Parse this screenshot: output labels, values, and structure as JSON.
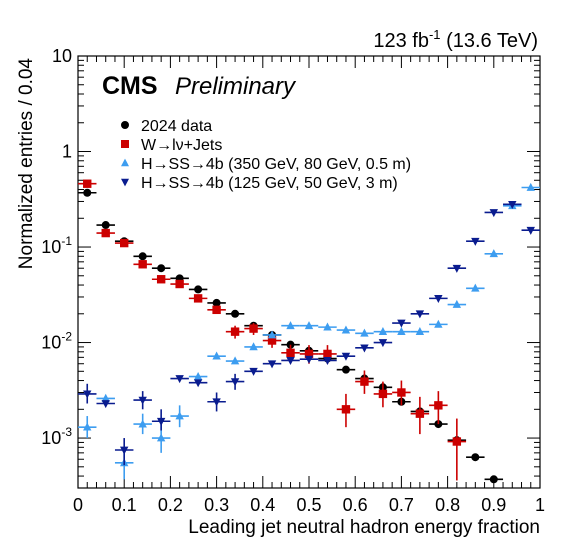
{
  "chart_data": {
    "type": "scatter",
    "header": {
      "lumi_value": "123 fb",
      "lumi_exponent": "-1",
      "lumi_energy": "(13.6 TeV)",
      "experiment": "CMS",
      "status": "Preliminary"
    },
    "xlabel": "Leading jet neutral hadron energy fraction",
    "ylabel": "Normalized entries / 0.04",
    "xlim": [
      0,
      1
    ],
    "ylim": [
      0.0003,
      10
    ],
    "y_scale": "log",
    "x_ticks": [
      "0",
      "0.1",
      "0.2",
      "0.3",
      "0.4",
      "0.5",
      "0.6",
      "0.7",
      "0.8",
      "0.9",
      "1"
    ],
    "y_ticks": [
      {
        "base": "10",
        "exp": "-3",
        "value": 0.001
      },
      {
        "base": "10",
        "exp": "-2",
        "value": 0.01
      },
      {
        "base": "10",
        "exp": "-1",
        "value": 0.1
      },
      {
        "base": "1",
        "exp": "",
        "value": 1
      },
      {
        "base": "10",
        "exp": "",
        "value": 10
      }
    ],
    "bin_width": 0.04,
    "legend_position": "top-left",
    "series": [
      {
        "name": "2024 data",
        "marker": "circle",
        "color": "#000000",
        "points": [
          {
            "x": 0.02,
            "y": 0.37,
            "lo": 0.37,
            "hi": 0.37
          },
          {
            "x": 0.06,
            "y": 0.17,
            "lo": 0.17,
            "hi": 0.17
          },
          {
            "x": 0.1,
            "y": 0.115,
            "lo": 0.115,
            "hi": 0.115
          },
          {
            "x": 0.14,
            "y": 0.08,
            "lo": 0.08,
            "hi": 0.08
          },
          {
            "x": 0.18,
            "y": 0.06,
            "lo": 0.06,
            "hi": 0.06
          },
          {
            "x": 0.22,
            "y": 0.047,
            "lo": 0.047,
            "hi": 0.047
          },
          {
            "x": 0.26,
            "y": 0.036,
            "lo": 0.036,
            "hi": 0.036
          },
          {
            "x": 0.3,
            "y": 0.026,
            "lo": 0.026,
            "hi": 0.026
          },
          {
            "x": 0.34,
            "y": 0.02,
            "lo": 0.02,
            "hi": 0.02
          },
          {
            "x": 0.38,
            "y": 0.015,
            "lo": 0.015,
            "hi": 0.015
          },
          {
            "x": 0.42,
            "y": 0.012,
            "lo": 0.012,
            "hi": 0.012
          },
          {
            "x": 0.46,
            "y": 0.0095,
            "lo": 0.0095,
            "hi": 0.0095
          },
          {
            "x": 0.5,
            "y": 0.0082,
            "lo": 0.0082,
            "hi": 0.0082
          },
          {
            "x": 0.54,
            "y": 0.0068,
            "lo": 0.0068,
            "hi": 0.0068
          },
          {
            "x": 0.58,
            "y": 0.0052,
            "lo": 0.0052,
            "hi": 0.0052
          },
          {
            "x": 0.62,
            "y": 0.0042,
            "lo": 0.0042,
            "hi": 0.0042
          },
          {
            "x": 0.66,
            "y": 0.0034,
            "lo": 0.0034,
            "hi": 0.0034
          },
          {
            "x": 0.7,
            "y": 0.0024,
            "lo": 0.0024,
            "hi": 0.0024
          },
          {
            "x": 0.74,
            "y": 0.0019,
            "lo": 0.0019,
            "hi": 0.0019
          },
          {
            "x": 0.78,
            "y": 0.0014,
            "lo": 0.0014,
            "hi": 0.0014
          },
          {
            "x": 0.82,
            "y": 0.00095,
            "lo": 0.00095,
            "hi": 0.00095
          },
          {
            "x": 0.86,
            "y": 0.00063,
            "lo": 0.00063,
            "hi": 0.00063
          },
          {
            "x": 0.9,
            "y": 0.00037,
            "lo": 0.00037,
            "hi": 0.00037
          }
        ]
      },
      {
        "name": "W→lν+Jets",
        "marker": "square",
        "color": "#cc0000",
        "points": [
          {
            "x": 0.02,
            "y": 0.46,
            "lo": 0.46,
            "hi": 0.46
          },
          {
            "x": 0.06,
            "y": 0.14,
            "lo": 0.14,
            "hi": 0.14
          },
          {
            "x": 0.1,
            "y": 0.11,
            "lo": 0.11,
            "hi": 0.11
          },
          {
            "x": 0.14,
            "y": 0.066,
            "lo": 0.066,
            "hi": 0.066
          },
          {
            "x": 0.18,
            "y": 0.046,
            "lo": 0.046,
            "hi": 0.046
          },
          {
            "x": 0.22,
            "y": 0.041,
            "lo": 0.041,
            "hi": 0.041
          },
          {
            "x": 0.26,
            "y": 0.029,
            "lo": 0.029,
            "hi": 0.029
          },
          {
            "x": 0.3,
            "y": 0.022,
            "lo": 0.022,
            "hi": 0.022
          },
          {
            "x": 0.34,
            "y": 0.013,
            "lo": 0.011,
            "hi": 0.015
          },
          {
            "x": 0.38,
            "y": 0.014,
            "lo": 0.012,
            "hi": 0.016
          },
          {
            "x": 0.42,
            "y": 0.0105,
            "lo": 0.0088,
            "hi": 0.0125
          },
          {
            "x": 0.46,
            "y": 0.0078,
            "lo": 0.0062,
            "hi": 0.0095
          },
          {
            "x": 0.5,
            "y": 0.0076,
            "lo": 0.006,
            "hi": 0.0094
          },
          {
            "x": 0.54,
            "y": 0.0076,
            "lo": 0.006,
            "hi": 0.0094
          },
          {
            "x": 0.58,
            "y": 0.002,
            "lo": 0.0013,
            "hi": 0.0029
          },
          {
            "x": 0.62,
            "y": 0.0039,
            "lo": 0.0029,
            "hi": 0.0051
          },
          {
            "x": 0.66,
            "y": 0.0029,
            "lo": 0.0021,
            "hi": 0.0039
          },
          {
            "x": 0.7,
            "y": 0.003,
            "lo": 0.0022,
            "hi": 0.004
          },
          {
            "x": 0.74,
            "y": 0.0018,
            "lo": 0.0011,
            "hi": 0.0027
          },
          {
            "x": 0.78,
            "y": 0.0022,
            "lo": 0.0014,
            "hi": 0.0031
          },
          {
            "x": 0.82,
            "y": 0.00092,
            "lo": 0.00036,
            "hi": 0.0016
          }
        ]
      },
      {
        "name": "H→SS→4b (350 GeV, 80 GeV, 0.5 m)",
        "marker": "triangle-up",
        "color": "#3d9df0",
        "points": [
          {
            "x": 0.02,
            "y": 0.0013,
            "lo": 0.001,
            "hi": 0.0017
          },
          {
            "x": 0.06,
            "y": 0.0026,
            "lo": 0.0026,
            "hi": 0.0026
          },
          {
            "x": 0.1,
            "y": 0.00055,
            "lo": 0.00037,
            "hi": 0.00075
          },
          {
            "x": 0.14,
            "y": 0.0014,
            "lo": 0.0011,
            "hi": 0.0018
          },
          {
            "x": 0.18,
            "y": 0.001,
            "lo": 0.0007,
            "hi": 0.0014
          },
          {
            "x": 0.22,
            "y": 0.0017,
            "lo": 0.0013,
            "hi": 0.0022
          },
          {
            "x": 0.26,
            "y": 0.0044,
            "lo": 0.0044,
            "hi": 0.0044
          },
          {
            "x": 0.3,
            "y": 0.0072,
            "lo": 0.0072,
            "hi": 0.0072
          },
          {
            "x": 0.34,
            "y": 0.0064,
            "lo": 0.0064,
            "hi": 0.0064
          },
          {
            "x": 0.38,
            "y": 0.009,
            "lo": 0.009,
            "hi": 0.009
          },
          {
            "x": 0.42,
            "y": 0.012,
            "lo": 0.012,
            "hi": 0.012
          },
          {
            "x": 0.46,
            "y": 0.015,
            "lo": 0.015,
            "hi": 0.015
          },
          {
            "x": 0.5,
            "y": 0.015,
            "lo": 0.015,
            "hi": 0.015
          },
          {
            "x": 0.54,
            "y": 0.0145,
            "lo": 0.0145,
            "hi": 0.0145
          },
          {
            "x": 0.58,
            "y": 0.0135,
            "lo": 0.0135,
            "hi": 0.0135
          },
          {
            "x": 0.62,
            "y": 0.0125,
            "lo": 0.0125,
            "hi": 0.0125
          },
          {
            "x": 0.66,
            "y": 0.013,
            "lo": 0.013,
            "hi": 0.013
          },
          {
            "x": 0.7,
            "y": 0.013,
            "lo": 0.013,
            "hi": 0.013
          },
          {
            "x": 0.74,
            "y": 0.013,
            "lo": 0.013,
            "hi": 0.013
          },
          {
            "x": 0.78,
            "y": 0.0155,
            "lo": 0.0155,
            "hi": 0.0155
          },
          {
            "x": 0.82,
            "y": 0.025,
            "lo": 0.025,
            "hi": 0.025
          },
          {
            "x": 0.86,
            "y": 0.037,
            "lo": 0.037,
            "hi": 0.037
          },
          {
            "x": 0.9,
            "y": 0.085,
            "lo": 0.085,
            "hi": 0.085
          },
          {
            "x": 0.94,
            "y": 0.27,
            "lo": 0.27,
            "hi": 0.27
          },
          {
            "x": 0.98,
            "y": 0.42,
            "lo": 0.42,
            "hi": 0.42
          }
        ]
      },
      {
        "name": "H→SS→4b (125 GeV, 50 GeV, 3 m)",
        "marker": "triangle-down",
        "color": "#0a1c8f",
        "points": [
          {
            "x": 0.02,
            "y": 0.0029,
            "lo": 0.0023,
            "hi": 0.0037
          },
          {
            "x": 0.06,
            "y": 0.0023,
            "lo": 0.0023,
            "hi": 0.0023
          },
          {
            "x": 0.1,
            "y": 0.00075,
            "lo": 0.00052,
            "hi": 0.001
          },
          {
            "x": 0.14,
            "y": 0.0025,
            "lo": 0.002,
            "hi": 0.0031
          },
          {
            "x": 0.18,
            "y": 0.0015,
            "lo": 0.0012,
            "hi": 0.002
          },
          {
            "x": 0.22,
            "y": 0.0042,
            "lo": 0.0042,
            "hi": 0.0042
          },
          {
            "x": 0.26,
            "y": 0.0038,
            "lo": 0.0038,
            "hi": 0.0038
          },
          {
            "x": 0.3,
            "y": 0.0024,
            "lo": 0.0019,
            "hi": 0.003
          },
          {
            "x": 0.34,
            "y": 0.0039,
            "lo": 0.0032,
            "hi": 0.0047
          },
          {
            "x": 0.38,
            "y": 0.005,
            "lo": 0.005,
            "hi": 0.005
          },
          {
            "x": 0.42,
            "y": 0.006,
            "lo": 0.006,
            "hi": 0.006
          },
          {
            "x": 0.46,
            "y": 0.0065,
            "lo": 0.0065,
            "hi": 0.0065
          },
          {
            "x": 0.5,
            "y": 0.0067,
            "lo": 0.0067,
            "hi": 0.0067
          },
          {
            "x": 0.54,
            "y": 0.0065,
            "lo": 0.0065,
            "hi": 0.0065
          },
          {
            "x": 0.58,
            "y": 0.0072,
            "lo": 0.0072,
            "hi": 0.0072
          },
          {
            "x": 0.62,
            "y": 0.0088,
            "lo": 0.0088,
            "hi": 0.0088
          },
          {
            "x": 0.66,
            "y": 0.01,
            "lo": 0.01,
            "hi": 0.01
          },
          {
            "x": 0.7,
            "y": 0.016,
            "lo": 0.016,
            "hi": 0.016
          },
          {
            "x": 0.74,
            "y": 0.02,
            "lo": 0.02,
            "hi": 0.02
          },
          {
            "x": 0.78,
            "y": 0.029,
            "lo": 0.029,
            "hi": 0.029
          },
          {
            "x": 0.82,
            "y": 0.06,
            "lo": 0.06,
            "hi": 0.06
          },
          {
            "x": 0.86,
            "y": 0.115,
            "lo": 0.115,
            "hi": 0.115
          },
          {
            "x": 0.9,
            "y": 0.23,
            "lo": 0.23,
            "hi": 0.23
          },
          {
            "x": 0.94,
            "y": 0.28,
            "lo": 0.28,
            "hi": 0.28
          },
          {
            "x": 0.98,
            "y": 0.15,
            "lo": 0.15,
            "hi": 0.15
          }
        ]
      }
    ]
  }
}
